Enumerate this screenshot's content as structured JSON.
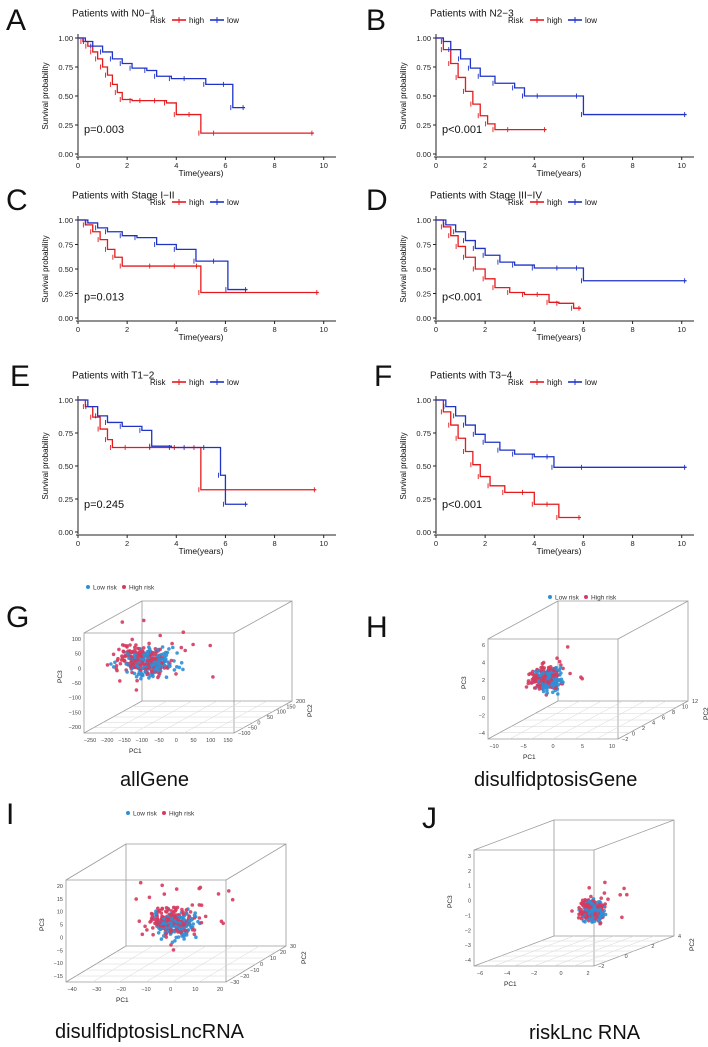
{
  "colors": {
    "high": "#e41a1c",
    "low": "#1f33c7",
    "low_risk_pts": "#2f8fd6",
    "high_risk_pts": "#d63a5e",
    "axis": "#222222",
    "box": "#9a9a9a"
  },
  "km_common": {
    "risk_label": "Risk",
    "high_label": "high",
    "low_label": "low",
    "xlabel": "Time(years)",
    "ylabel": "Survival probability",
    "yticks": [
      "0.00",
      "0.25",
      "0.50",
      "0.75",
      "1.00"
    ],
    "xticks": [
      "0",
      "2",
      "4",
      "6",
      "8",
      "10"
    ]
  },
  "chart_data": [
    {
      "type": "line",
      "letter": "A",
      "title": "Patients with N0−1",
      "pvalue": "p=0.003",
      "xlim": [
        0,
        10.5
      ],
      "ylim": [
        0,
        1.0
      ],
      "series": [
        {
          "name": "high",
          "x": [
            0,
            0.2,
            0.4,
            0.6,
            0.8,
            1.0,
            1.2,
            1.4,
            1.6,
            1.8,
            2.2,
            2.6,
            3.2,
            3.6,
            4.0,
            4.6,
            5.0,
            5.6,
            9.6
          ],
          "y": [
            1.0,
            0.97,
            0.93,
            0.88,
            0.82,
            0.75,
            0.68,
            0.6,
            0.53,
            0.47,
            0.46,
            0.46,
            0.46,
            0.44,
            0.34,
            0.34,
            0.18,
            0.18,
            0.18
          ]
        },
        {
          "name": "low",
          "x": [
            0,
            0.3,
            0.6,
            1.0,
            1.4,
            1.8,
            2.2,
            2.8,
            3.2,
            3.8,
            4.4,
            5.2,
            6.0,
            6.3,
            6.8
          ],
          "y": [
            1.0,
            0.97,
            0.93,
            0.88,
            0.82,
            0.78,
            0.74,
            0.72,
            0.67,
            0.65,
            0.65,
            0.6,
            0.6,
            0.4,
            0.4
          ]
        }
      ]
    },
    {
      "type": "line",
      "letter": "B",
      "title": "Patients with N2−3",
      "pvalue": "p<0.001",
      "xlim": [
        0,
        10.5
      ],
      "ylim": [
        0,
        1.0
      ],
      "series": [
        {
          "name": "high",
          "x": [
            0,
            0.3,
            0.6,
            0.9,
            1.2,
            1.5,
            1.8,
            2.1,
            2.4,
            3.0,
            4.5
          ],
          "y": [
            1.0,
            0.9,
            0.78,
            0.66,
            0.54,
            0.43,
            0.33,
            0.26,
            0.21,
            0.21,
            0.21
          ]
        },
        {
          "name": "low",
          "x": [
            0,
            0.3,
            0.6,
            1.0,
            1.4,
            1.8,
            2.4,
            3.2,
            3.6,
            4.2,
            5.8,
            6.0,
            10.2
          ],
          "y": [
            1.0,
            0.97,
            0.9,
            0.82,
            0.74,
            0.67,
            0.61,
            0.57,
            0.5,
            0.5,
            0.5,
            0.34,
            0.34
          ]
        }
      ]
    },
    {
      "type": "line",
      "letter": "C",
      "title": "Patients with Stage I−II",
      "pvalue": "p=0.013",
      "xlim": [
        0,
        10.5
      ],
      "ylim": [
        0,
        1.0
      ],
      "series": [
        {
          "name": "high",
          "x": [
            0,
            0.3,
            0.6,
            0.9,
            1.2,
            1.5,
            1.8,
            3.0,
            4.0,
            4.9,
            5.0,
            9.8
          ],
          "y": [
            1.0,
            0.95,
            0.88,
            0.8,
            0.7,
            0.62,
            0.53,
            0.53,
            0.53,
            0.53,
            0.26,
            0.26
          ]
        },
        {
          "name": "low",
          "x": [
            0,
            0.4,
            0.8,
            1.2,
            1.8,
            2.4,
            3.2,
            4.0,
            4.8,
            5.6,
            6.1,
            6.9
          ],
          "y": [
            1.0,
            0.97,
            0.92,
            0.88,
            0.84,
            0.82,
            0.75,
            0.7,
            0.58,
            0.58,
            0.29,
            0.29
          ]
        }
      ]
    },
    {
      "type": "line",
      "letter": "D",
      "title": "Patients with Stage III−IV",
      "pvalue": "p<0.001",
      "xlim": [
        0,
        10.5
      ],
      "ylim": [
        0,
        1.0
      ],
      "series": [
        {
          "name": "high",
          "x": [
            0,
            0.3,
            0.6,
            0.9,
            1.2,
            1.6,
            2.0,
            2.4,
            3.0,
            3.6,
            4.2,
            4.6,
            5.0,
            5.6,
            5.9
          ],
          "y": [
            1.0,
            0.93,
            0.84,
            0.73,
            0.62,
            0.5,
            0.4,
            0.31,
            0.26,
            0.24,
            0.24,
            0.16,
            0.15,
            0.1,
            0.1
          ]
        },
        {
          "name": "low",
          "x": [
            0,
            0.4,
            0.8,
            1.2,
            1.6,
            2.0,
            2.6,
            3.2,
            4.0,
            5.0,
            5.8,
            6.0,
            10.2
          ],
          "y": [
            1.0,
            0.95,
            0.88,
            0.79,
            0.71,
            0.64,
            0.57,
            0.54,
            0.51,
            0.51,
            0.51,
            0.38,
            0.38
          ]
        }
      ]
    },
    {
      "type": "line",
      "letter": "E",
      "title": "Patients with T1−2",
      "pvalue": "p=0.245",
      "xlim": [
        0,
        10.5
      ],
      "ylim": [
        0,
        1.0
      ],
      "series": [
        {
          "name": "high",
          "x": [
            0,
            0.3,
            0.6,
            0.9,
            1.2,
            1.4,
            2.0,
            3.0,
            4.0,
            4.8,
            5.0,
            9.7
          ],
          "y": [
            1.0,
            0.95,
            0.87,
            0.78,
            0.7,
            0.64,
            0.64,
            0.64,
            0.64,
            0.64,
            0.32,
            0.32
          ]
        },
        {
          "name": "low",
          "x": [
            0,
            0.4,
            0.8,
            1.2,
            1.8,
            2.6,
            3.0,
            3.8,
            4.4,
            5.2,
            5.8,
            6.0,
            6.9
          ],
          "y": [
            1.0,
            0.95,
            0.88,
            0.83,
            0.8,
            0.77,
            0.65,
            0.64,
            0.64,
            0.64,
            0.43,
            0.21,
            0.21
          ]
        }
      ]
    },
    {
      "type": "line",
      "letter": "F",
      "title": "Patients with T3−4",
      "pvalue": "p<0.001",
      "xlim": [
        0,
        10.5
      ],
      "ylim": [
        0,
        1.0
      ],
      "series": [
        {
          "name": "high",
          "x": [
            0,
            0.3,
            0.6,
            0.9,
            1.2,
            1.5,
            1.8,
            2.2,
            2.8,
            3.6,
            4.0,
            4.6,
            5.0,
            5.9
          ],
          "y": [
            1.0,
            0.91,
            0.81,
            0.71,
            0.61,
            0.51,
            0.42,
            0.35,
            0.3,
            0.3,
            0.21,
            0.21,
            0.11,
            0.11
          ]
        },
        {
          "name": "low",
          "x": [
            0,
            0.4,
            0.8,
            1.2,
            1.6,
            2.0,
            2.6,
            3.2,
            4.0,
            4.6,
            4.8,
            6.0,
            10.2
          ],
          "y": [
            1.0,
            0.95,
            0.88,
            0.81,
            0.74,
            0.68,
            0.62,
            0.59,
            0.57,
            0.57,
            0.49,
            0.49,
            0.49
          ]
        }
      ]
    }
  ],
  "pca_panels": [
    {
      "letter": "G",
      "caption": "allGene",
      "legend_low": "Low risk",
      "legend_high": "High risk",
      "xlabel": "PC1",
      "ylabel": "PC3",
      "zlabel": "PC2",
      "xticks": [
        "−250",
        "−200",
        "−150",
        "−100",
        "−50",
        "0",
        "50",
        "100",
        "150"
      ],
      "zticks": [
        "200",
        "150",
        "100",
        "50",
        "0",
        "−50",
        "−100"
      ],
      "yticks": [
        "100",
        "50",
        "0",
        "−50",
        "−100",
        "−150",
        "−200"
      ]
    },
    {
      "letter": "H",
      "caption": "disulfidptosisGene",
      "legend_low": "Low risk",
      "legend_high": "High risk",
      "xlabel": "PC1",
      "ylabel": "PC3",
      "zlabel": "PC2",
      "xticks": [
        "−10",
        "−5",
        "0",
        "5",
        "10"
      ],
      "zticks": [
        "12",
        "10",
        "8",
        "6",
        "4",
        "2",
        "0",
        "−2"
      ],
      "yticks": [
        "6",
        "4",
        "2",
        "0",
        "−2",
        "−4"
      ]
    },
    {
      "letter": "I",
      "caption": "disulfidptosisLncRNA",
      "legend_low": "Low risk",
      "legend_high": "High risk",
      "xlabel": "PC1",
      "ylabel": "PC3",
      "zlabel": "PC2",
      "xticks": [
        "−40",
        "−30",
        "−20",
        "−10",
        "0",
        "10",
        "20"
      ],
      "zticks": [
        "30",
        "20",
        "10",
        "0",
        "−10",
        "−20",
        "−30"
      ],
      "yticks": [
        "20",
        "15",
        "10",
        "5",
        "0",
        "−5",
        "−10",
        "−15"
      ]
    },
    {
      "letter": "J",
      "caption": "riskLnc RNA",
      "legend_low": "",
      "legend_high": "",
      "xlabel": "PC1",
      "ylabel": "PC3",
      "zlabel": "PC2",
      "xticks": [
        "−6",
        "−4",
        "−2",
        "0",
        "2"
      ],
      "zticks": [
        "4",
        "2",
        "0",
        "−2"
      ],
      "yticks": [
        "3",
        "2",
        "1",
        "0",
        "−1",
        "−2",
        "−3",
        "−4"
      ]
    }
  ]
}
